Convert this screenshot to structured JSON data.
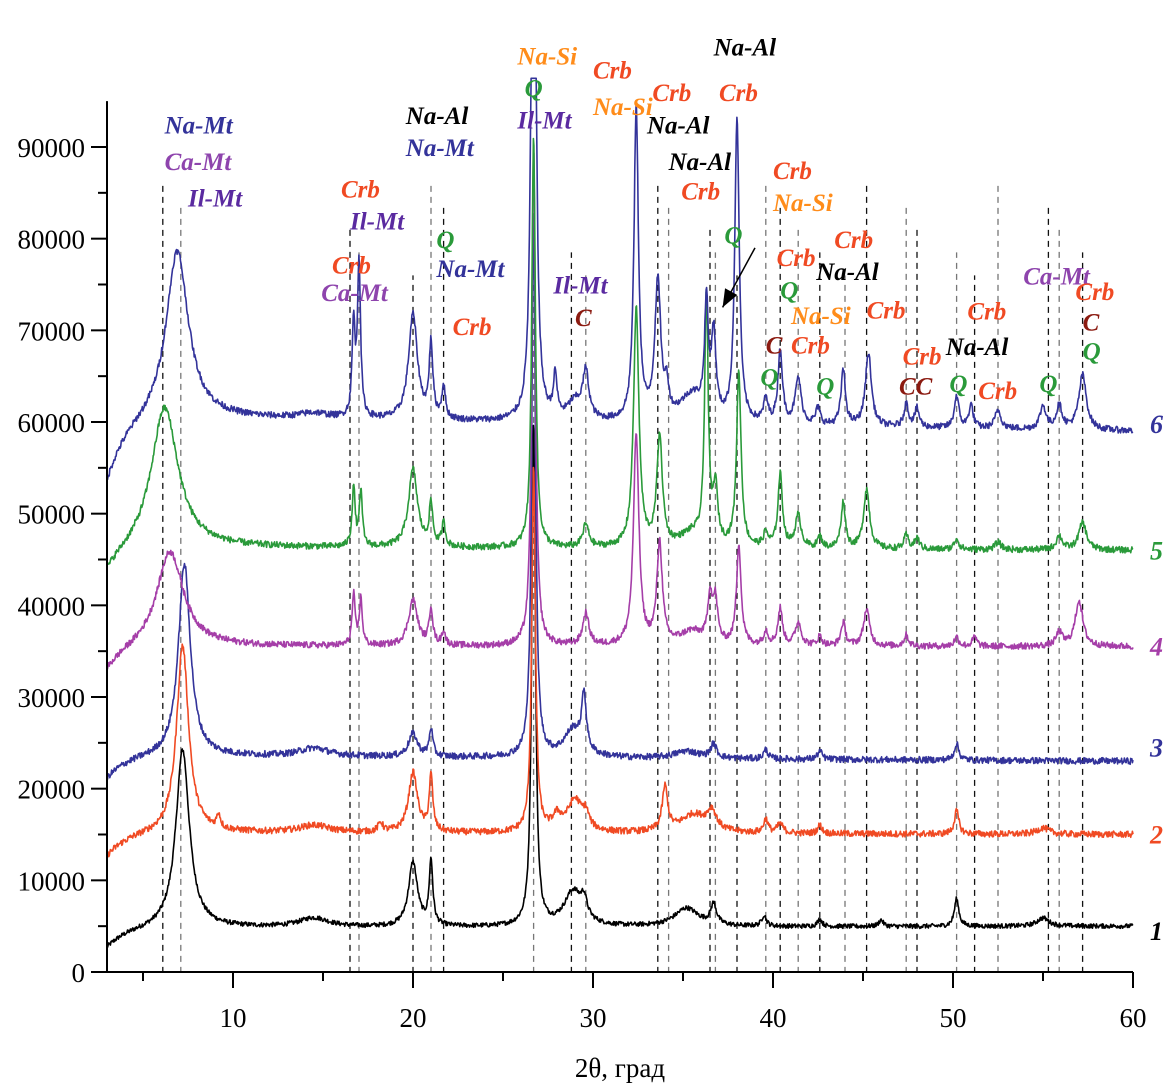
{
  "chart_data": {
    "type": "line",
    "title": "",
    "xlabel": "2θ, град",
    "ylabel": "",
    "xlim": [
      3,
      60
    ],
    "ylim": [
      0,
      95000
    ],
    "x_ticks": [
      10,
      20,
      30,
      40,
      50,
      60
    ],
    "x_minor_ticks": [
      5,
      15,
      25,
      35,
      45,
      55
    ],
    "y_ticks": [
      0,
      10000,
      20000,
      30000,
      40000,
      50000,
      60000,
      70000,
      80000,
      90000
    ],
    "y_tick_labels": [
      "0",
      "10000",
      "20000",
      "30000",
      "40000",
      "50000",
      "60000",
      "70000",
      "80000",
      "90000"
    ],
    "grid": false,
    "colors": {
      "navy": "#33339a",
      "purple": "#8e44ad",
      "orange": "#ff8c1a",
      "red": "#f04a23",
      "green": "#2a9a3a",
      "darkred": "#8b1a10",
      "black": "#000000",
      "violet": "#5a2aa0",
      "magenta": "#a53ea8"
    },
    "series": [
      {
        "name": "1",
        "color": "#000000",
        "baseline_start": 2500,
        "baseline": 4800,
        "baseline_end": 5000,
        "peaks": [
          [
            7.2,
            19500,
            0.45
          ],
          [
            14.5,
            1000,
            1.0
          ],
          [
            20.0,
            7000,
            0.3
          ],
          [
            21.0,
            7000,
            0.12
          ],
          [
            26.7,
            55000,
            0.12
          ],
          [
            28.9,
            3800,
            0.6
          ],
          [
            29.5,
            2000,
            0.2
          ],
          [
            35.2,
            2000,
            0.8
          ],
          [
            36.7,
            2200,
            0.2
          ],
          [
            39.5,
            1200,
            0.15
          ],
          [
            42.6,
            800,
            0.15
          ],
          [
            46.0,
            700,
            0.15
          ],
          [
            50.2,
            3000,
            0.15
          ],
          [
            55.0,
            900,
            0.4
          ]
        ]
      },
      {
        "name": "2",
        "color": "#f04a23",
        "baseline_start": 12500,
        "baseline": 15200,
        "baseline_end": 15000,
        "peaks": [
          [
            7.2,
            20500,
            0.4
          ],
          [
            9.2,
            1500,
            0.12
          ],
          [
            14.5,
            800,
            1.0
          ],
          [
            18.2,
            1000,
            0.15
          ],
          [
            20.0,
            6500,
            0.3
          ],
          [
            21.0,
            6000,
            0.12
          ],
          [
            26.7,
            40000,
            0.12
          ],
          [
            28.0,
            1500,
            0.3
          ],
          [
            29.0,
            3500,
            0.5
          ],
          [
            29.6,
            1500,
            0.2
          ],
          [
            34.0,
            4800,
            0.18
          ],
          [
            35.6,
            2000,
            0.9
          ],
          [
            36.6,
            2000,
            0.3
          ],
          [
            39.6,
            1500,
            0.15
          ],
          [
            40.4,
            1000,
            0.2
          ],
          [
            42.6,
            900,
            0.15
          ],
          [
            50.2,
            2500,
            0.15
          ],
          [
            55.0,
            700,
            0.4
          ]
        ]
      },
      {
        "name": "3",
        "color": "#33339a",
        "baseline_start": 21000,
        "baseline": 23600,
        "baseline_end": 23000,
        "peaks": [
          [
            7.3,
            21000,
            0.4
          ],
          [
            14.5,
            900,
            1.0
          ],
          [
            20.0,
            2500,
            0.3
          ],
          [
            21.0,
            3000,
            0.12
          ],
          [
            26.7,
            60000,
            0.12
          ],
          [
            28.9,
            3000,
            0.6
          ],
          [
            29.5,
            6000,
            0.15
          ],
          [
            35.2,
            800,
            0.8
          ],
          [
            36.7,
            1500,
            0.2
          ],
          [
            39.6,
            1000,
            0.15
          ],
          [
            42.6,
            900,
            0.15
          ],
          [
            50.2,
            1800,
            0.15
          ]
        ]
      },
      {
        "name": "4",
        "color": "#a53ea8",
        "baseline_start": 32500,
        "baseline": 35500,
        "baseline_end": 35500,
        "peaks": [
          [
            6.5,
            10500,
            0.9
          ],
          [
            16.7,
            5500,
            0.1
          ],
          [
            17.1,
            5000,
            0.1
          ],
          [
            20.0,
            5000,
            0.3
          ],
          [
            21.0,
            4000,
            0.12
          ],
          [
            21.7,
            1500,
            0.12
          ],
          [
            26.7,
            55000,
            0.12
          ],
          [
            29.6,
            3500,
            0.2
          ],
          [
            32.4,
            23000,
            0.18
          ],
          [
            33.7,
            11000,
            0.18
          ],
          [
            35.5,
            1500,
            0.8
          ],
          [
            36.5,
            5000,
            0.15
          ],
          [
            36.8,
            4500,
            0.15
          ],
          [
            38.1,
            11000,
            0.15
          ],
          [
            39.6,
            1500,
            0.15
          ],
          [
            40.4,
            4000,
            0.15
          ],
          [
            41.4,
            2500,
            0.2
          ],
          [
            42.6,
            1000,
            0.15
          ],
          [
            43.9,
            2500,
            0.15
          ],
          [
            45.2,
            4000,
            0.2
          ],
          [
            47.4,
            1200,
            0.15
          ],
          [
            50.2,
            1000,
            0.15
          ],
          [
            51.2,
            1000,
            0.15
          ],
          [
            55.9,
            1500,
            0.2
          ],
          [
            57.0,
            5000,
            0.25
          ]
        ]
      },
      {
        "name": "5",
        "color": "#2a9a3a",
        "baseline_start": 43000,
        "baseline": 46300,
        "baseline_end": 46000,
        "peaks": [
          [
            6.2,
            15500,
            0.9
          ],
          [
            16.7,
            6500,
            0.1
          ],
          [
            17.1,
            6000,
            0.1
          ],
          [
            20.0,
            8500,
            0.3
          ],
          [
            21.0,
            4500,
            0.12
          ],
          [
            21.7,
            2500,
            0.12
          ],
          [
            26.7,
            45000,
            0.12
          ],
          [
            29.6,
            2500,
            0.2
          ],
          [
            32.4,
            26000,
            0.18
          ],
          [
            33.7,
            12000,
            0.18
          ],
          [
            35.5,
            1500,
            0.8
          ],
          [
            36.3,
            27000,
            0.12
          ],
          [
            36.8,
            6000,
            0.15
          ],
          [
            38.1,
            19000,
            0.15
          ],
          [
            39.6,
            1500,
            0.15
          ],
          [
            40.4,
            8000,
            0.15
          ],
          [
            41.4,
            3500,
            0.2
          ],
          [
            42.6,
            1200,
            0.15
          ],
          [
            43.9,
            5000,
            0.15
          ],
          [
            45.2,
            6500,
            0.2
          ],
          [
            47.4,
            1500,
            0.15
          ],
          [
            48.0,
            1200,
            0.15
          ],
          [
            50.2,
            1200,
            0.15
          ],
          [
            52.5,
            800,
            0.2
          ],
          [
            55.9,
            1500,
            0.2
          ],
          [
            57.2,
            3000,
            0.25
          ]
        ]
      },
      {
        "name": "6",
        "color": "#33339a",
        "baseline_start": 53000,
        "baseline": 60500,
        "baseline_end": 59000,
        "peaks": [
          [
            6.9,
            18500,
            0.75
          ],
          [
            14.5,
            600,
            1.0
          ],
          [
            16.7,
            10000,
            0.1
          ],
          [
            17.0,
            17000,
            0.1
          ],
          [
            20.0,
            11500,
            0.3
          ],
          [
            21.0,
            8000,
            0.12
          ],
          [
            21.7,
            3500,
            0.12
          ],
          [
            26.7,
            97000,
            0.12
          ],
          [
            27.9,
            4500,
            0.12
          ],
          [
            29.0,
            2000,
            0.5
          ],
          [
            29.6,
            5000,
            0.2
          ],
          [
            32.4,
            34000,
            0.15
          ],
          [
            33.6,
            15000,
            0.2
          ],
          [
            34.1,
            3000,
            0.12
          ],
          [
            35.5,
            3000,
            0.8
          ],
          [
            36.3,
            12000,
            0.12
          ],
          [
            36.7,
            9000,
            0.15
          ],
          [
            38.0,
            33000,
            0.15
          ],
          [
            39.6,
            2500,
            0.15
          ],
          [
            40.4,
            8000,
            0.15
          ],
          [
            41.4,
            5000,
            0.2
          ],
          [
            42.5,
            1800,
            0.15
          ],
          [
            43.9,
            6000,
            0.15
          ],
          [
            45.3,
            8000,
            0.2
          ],
          [
            47.4,
            2500,
            0.15
          ],
          [
            48.0,
            2000,
            0.15
          ],
          [
            50.2,
            3500,
            0.15
          ],
          [
            51.0,
            2500,
            0.15
          ],
          [
            52.5,
            2000,
            0.2
          ],
          [
            55.0,
            2500,
            0.2
          ],
          [
            55.9,
            2500,
            0.2
          ],
          [
            57.2,
            6000,
            0.25
          ]
        ]
      }
    ],
    "reference_lines": [
      6.1,
      7.1,
      16.5,
      17.0,
      20.0,
      21.0,
      21.7,
      26.7,
      28.8,
      29.6,
      33.6,
      34.2,
      36.5,
      36.8,
      38.0,
      39.6,
      40.4,
      41.4,
      42.6,
      44.0,
      45.2,
      47.4,
      48.0,
      50.2,
      51.2,
      52.5,
      55.3,
      55.9,
      57.2
    ],
    "annotations": [
      {
        "text": "Na-Mt",
        "x": 6.2,
        "y": 91500,
        "color": "navy"
      },
      {
        "text": "Ca-Mt",
        "x": 6.2,
        "y": 87500,
        "color": "purple"
      },
      {
        "text": "Il-Mt",
        "x": 7.5,
        "y": 83500,
        "color": "violet"
      },
      {
        "text": "Crb",
        "x": 16.0,
        "y": 84500,
        "color": "red"
      },
      {
        "text": "Il-Mt",
        "x": 16.5,
        "y": 81000,
        "color": "violet"
      },
      {
        "text": "Crb",
        "x": 15.5,
        "y": 76200,
        "color": "red"
      },
      {
        "text": "Ca-Mt",
        "x": 14.9,
        "y": 73200,
        "color": "purple"
      },
      {
        "text": "Na-Al",
        "x": 19.6,
        "y": 92500,
        "color": "black"
      },
      {
        "text": "Na-Mt",
        "x": 19.6,
        "y": 89000,
        "color": "navy"
      },
      {
        "text": "Q",
        "x": 21.3,
        "y": 79000,
        "color": "green"
      },
      {
        "text": "Na-Mt",
        "x": 21.3,
        "y": 75800,
        "color": "navy"
      },
      {
        "text": "Crb",
        "x": 22.2,
        "y": 69500,
        "color": "red"
      },
      {
        "text": "Na-Si",
        "x": 25.8,
        "y": 99000,
        "color": "orange"
      },
      {
        "text": "Q",
        "x": 26.2,
        "y": 95500,
        "color": "green"
      },
      {
        "text": "Il-Mt",
        "x": 25.8,
        "y": 92000,
        "color": "violet"
      },
      {
        "text": "Il-Mt",
        "x": 27.8,
        "y": 74000,
        "color": "violet"
      },
      {
        "text": "C",
        "x": 29.0,
        "y": 70500,
        "color": "darkred"
      },
      {
        "text": "Crb",
        "x": 30.0,
        "y": 97500,
        "color": "red"
      },
      {
        "text": "Na-Si",
        "x": 30.0,
        "y": 93500,
        "color": "orange"
      },
      {
        "text": "Crb",
        "x": 33.3,
        "y": 95000,
        "color": "red"
      },
      {
        "text": "Na-Al",
        "x": 33.0,
        "y": 91500,
        "color": "black"
      },
      {
        "text": "Na-Al",
        "x": 34.2,
        "y": 87500,
        "color": "black"
      },
      {
        "text": "Crb",
        "x": 34.9,
        "y": 84300,
        "color": "red"
      },
      {
        "text": "Na-Al",
        "x": 36.7,
        "y": 100000,
        "color": "black"
      },
      {
        "text": "Crb",
        "x": 37.0,
        "y": 95000,
        "color": "red"
      },
      {
        "text": "Q",
        "x": 37.3,
        "y": 79500,
        "color": "green"
      },
      {
        "text": "Crb",
        "x": 40.0,
        "y": 86500,
        "color": "red"
      },
      {
        "text": "Na-Si",
        "x": 40.0,
        "y": 83000,
        "color": "orange"
      },
      {
        "text": "Crb",
        "x": 40.2,
        "y": 77000,
        "color": "red"
      },
      {
        "text": "Q",
        "x": 40.4,
        "y": 73500,
        "color": "green"
      },
      {
        "text": "Crb",
        "x": 43.4,
        "y": 79000,
        "color": "red"
      },
      {
        "text": "Na-Al",
        "x": 42.4,
        "y": 75500,
        "color": "black"
      },
      {
        "text": "Crb",
        "x": 45.2,
        "y": 71300,
        "color": "red"
      },
      {
        "text": "Na-Si",
        "x": 41.0,
        "y": 70700,
        "color": "orange"
      },
      {
        "text": "C",
        "x": 39.6,
        "y": 67500,
        "color": "darkred"
      },
      {
        "text": "Q",
        "x": 39.3,
        "y": 64000,
        "color": "green"
      },
      {
        "text": "Crb",
        "x": 41.0,
        "y": 67500,
        "color": "red"
      },
      {
        "text": "Q",
        "x": 42.4,
        "y": 63000,
        "color": "green"
      },
      {
        "text": "Crb",
        "x": 47.2,
        "y": 66300,
        "color": "red"
      },
      {
        "text": "CC",
        "x": 47.0,
        "y": 63000,
        "color": "darkred"
      },
      {
        "text": "Crb",
        "x": 50.8,
        "y": 71200,
        "color": "red"
      },
      {
        "text": "Na-Al",
        "x": 49.6,
        "y": 67300,
        "color": "black"
      },
      {
        "text": "Q",
        "x": 49.8,
        "y": 63300,
        "color": "green"
      },
      {
        "text": "Crb",
        "x": 51.4,
        "y": 62500,
        "color": "red"
      },
      {
        "text": "Q",
        "x": 54.8,
        "y": 63300,
        "color": "green"
      },
      {
        "text": "Ca-Mt",
        "x": 53.9,
        "y": 75000,
        "color": "purple"
      },
      {
        "text": "Crb",
        "x": 56.8,
        "y": 73300,
        "color": "red"
      },
      {
        "text": "C",
        "x": 57.2,
        "y": 70000,
        "color": "darkred"
      },
      {
        "text": "Q",
        "x": 57.2,
        "y": 66800,
        "color": "green"
      }
    ],
    "arrow": {
      "from": [
        39.0,
        79000
      ],
      "to": [
        37.2,
        72500
      ]
    },
    "series_labels": [
      {
        "text": "1",
        "y": 4500,
        "color": "#000000"
      },
      {
        "text": "2",
        "y": 15000,
        "color": "#f04a23"
      },
      {
        "text": "3",
        "y": 24500,
        "color": "#33339a"
      },
      {
        "text": "4",
        "y": 35500,
        "color": "#a53ea8"
      },
      {
        "text": "5",
        "y": 46000,
        "color": "#2a9a3a"
      },
      {
        "text": "6",
        "y": 59800,
        "color": "#33339a"
      }
    ]
  }
}
